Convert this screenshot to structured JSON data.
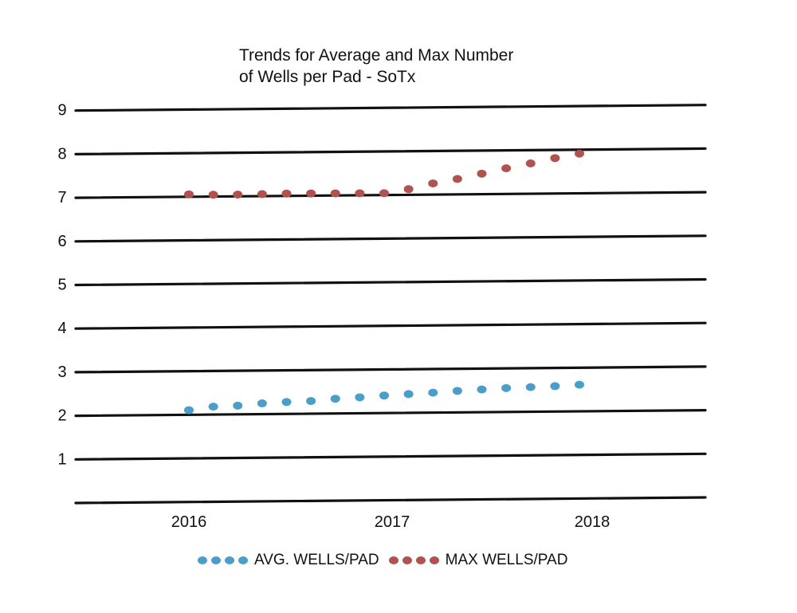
{
  "chart_data": {
    "type": "scatter",
    "title_lines": [
      "Trends for Average and Max Number",
      "of Wells per Pad - SoTx"
    ],
    "xlabel": "",
    "ylabel": "",
    "x_ticks": [
      "2016",
      "2017",
      "2018"
    ],
    "y_ticks": [
      "1",
      "2",
      "3",
      "4",
      "5",
      "6",
      "7",
      "8",
      "9"
    ],
    "ylim": [
      0,
      9
    ],
    "grid": true,
    "legend_position": "bottom",
    "colors": {
      "avg": "#4a9ec7",
      "max": "#b0524f"
    },
    "series": [
      {
        "name": "AVG. WELLS/PAD",
        "key": "avg",
        "values": [
          2.1,
          2.18,
          2.2,
          2.25,
          2.28,
          2.3,
          2.35,
          2.38,
          2.42,
          2.45,
          2.48,
          2.52,
          2.55,
          2.58,
          2.6,
          2.62,
          2.65
        ]
      },
      {
        "name": "MAX WELLS/PAD",
        "key": "max",
        "values": [
          7.05,
          7.04,
          7.04,
          7.05,
          7.06,
          7.06,
          7.06,
          7.06,
          7.06,
          7.15,
          7.28,
          7.38,
          7.5,
          7.62,
          7.73,
          7.85,
          7.95
        ]
      }
    ]
  }
}
